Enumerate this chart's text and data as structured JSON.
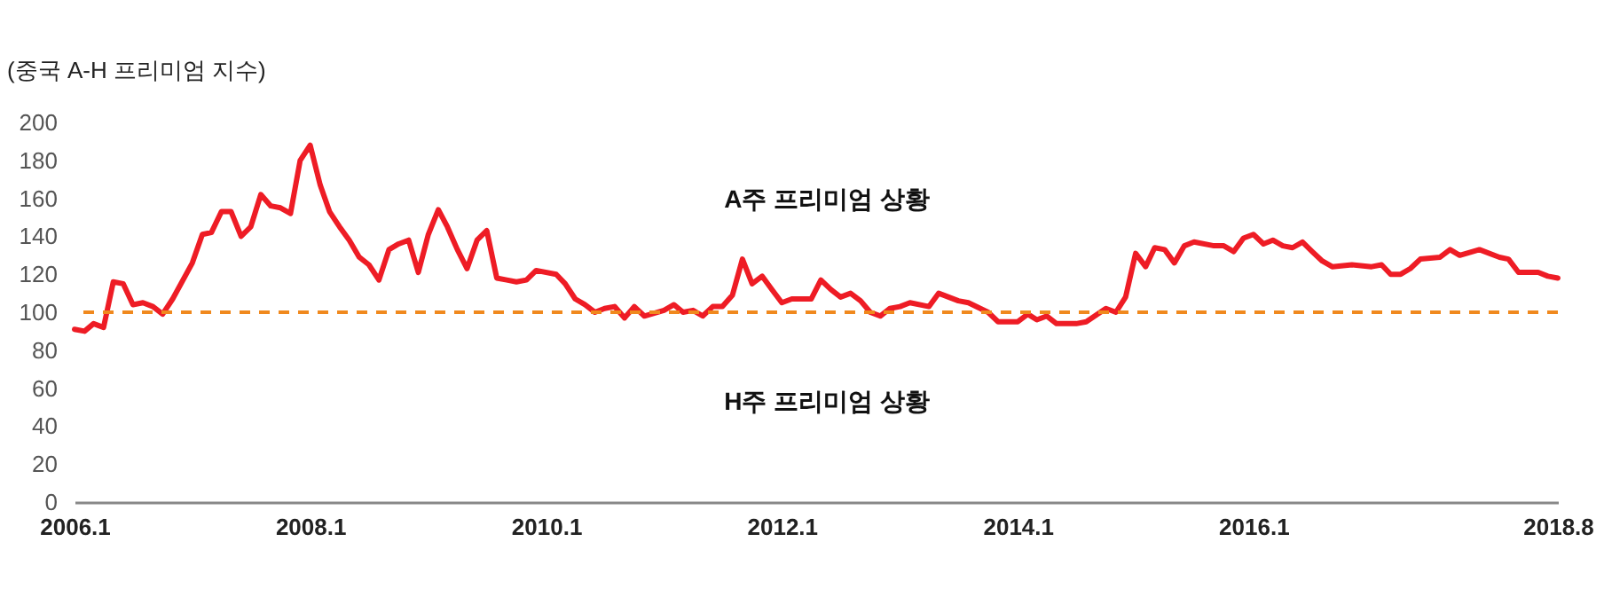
{
  "chart_data": {
    "type": "line",
    "title": "(중국 A-H 프리미엄 지수)",
    "x": [
      "2006-01",
      "2006-02",
      "2006-03",
      "2006-04",
      "2006-05",
      "2006-06",
      "2006-07",
      "2006-08",
      "2006-09",
      "2006-10",
      "2006-11",
      "2007-01",
      "2007-02",
      "2007-03",
      "2007-04",
      "2007-05",
      "2007-06",
      "2007-07",
      "2007-08",
      "2007-09",
      "2007-10",
      "2007-11",
      "2007-12",
      "2008-01",
      "2008-02",
      "2008-03",
      "2008-04",
      "2008-05",
      "2008-06",
      "2008-07",
      "2008-08",
      "2008-09",
      "2008-10",
      "2008-11",
      "2008-12",
      "2009-01",
      "2009-02",
      "2009-03",
      "2009-04",
      "2009-05",
      "2009-06",
      "2009-07",
      "2009-08",
      "2009-09",
      "2009-10",
      "2009-11",
      "2009-12",
      "2010-02",
      "2010-03",
      "2010-04",
      "2010-05",
      "2010-06",
      "2010-07",
      "2010-08",
      "2010-09",
      "2010-10",
      "2010-11",
      "2011-01",
      "2011-02",
      "2011-03",
      "2011-04",
      "2011-05",
      "2011-06",
      "2011-07",
      "2011-08",
      "2011-09",
      "2011-10",
      "2011-11",
      "2011-12",
      "2012-01",
      "2012-02",
      "2012-04",
      "2012-05",
      "2012-06",
      "2012-07",
      "2012-08",
      "2012-09",
      "2012-10",
      "2012-11",
      "2012-12",
      "2013-01",
      "2013-02",
      "2013-04",
      "2013-05",
      "2013-07",
      "2013-08",
      "2013-10",
      "2013-11",
      "2014-01",
      "2014-02",
      "2014-03",
      "2014-04",
      "2014-05",
      "2014-07",
      "2014-08",
      "2014-10",
      "2014-11",
      "2014-12",
      "2015-01",
      "2015-02",
      "2015-03",
      "2015-04",
      "2015-05",
      "2015-06",
      "2015-07",
      "2015-09",
      "2015-10",
      "2015-11",
      "2015-12",
      "2016-01",
      "2016-02",
      "2016-03",
      "2016-04",
      "2016-05",
      "2016-06",
      "2016-07",
      "2016-08",
      "2016-09",
      "2016-11",
      "2017-01",
      "2017-02",
      "2017-03",
      "2017-04",
      "2017-05",
      "2017-06",
      "2017-08",
      "2017-09",
      "2017-10",
      "2017-12",
      "2018-02",
      "2018-03",
      "2018-04",
      "2018-06",
      "2018-07",
      "2018-08"
    ],
    "series": [
      {
        "color": "#ee1c25",
        "values": [
          91,
          90,
          94,
          92,
          116,
          115,
          104,
          105,
          103,
          99,
          107,
          126,
          141,
          142,
          153,
          153,
          140,
          145,
          162,
          156,
          155,
          152,
          180,
          188,
          167,
          153,
          145,
          138,
          129,
          125,
          117,
          133,
          136,
          138,
          121,
          141,
          154,
          145,
          133,
          123,
          138,
          143,
          118,
          117,
          116,
          117,
          122,
          120,
          115,
          107,
          104,
          100,
          102,
          103,
          97,
          103,
          98,
          101,
          104,
          100,
          101,
          98,
          103,
          103,
          109,
          128,
          115,
          119,
          112,
          105,
          107,
          107,
          117,
          112,
          108,
          110,
          106,
          100,
          98,
          102,
          103,
          105,
          103,
          110,
          106,
          105,
          100,
          95,
          95,
          99,
          96,
          98,
          94,
          94,
          95,
          102,
          100,
          108,
          131,
          124,
          134,
          133,
          126,
          135,
          137,
          135,
          135,
          132,
          139,
          141,
          136,
          138,
          135,
          134,
          137,
          132,
          127,
          124,
          125,
          124,
          125,
          120,
          120,
          123,
          128,
          129,
          133,
          130,
          133,
          129,
          128,
          121,
          121,
          119,
          118
        ]
      }
    ],
    "xlim": [
      "2006-01",
      "2018-08"
    ],
    "xticks": [
      {
        "value": "2006-01",
        "label": "2006.1"
      },
      {
        "value": "2008-01",
        "label": "2008.1"
      },
      {
        "value": "2010-01",
        "label": "2010.1"
      },
      {
        "value": "2012-01",
        "label": "2012.1"
      },
      {
        "value": "2014-01",
        "label": "2014.1"
      },
      {
        "value": "2016-01",
        "label": "2016.1"
      },
      {
        "value": "2018-08",
        "label": "2018.8"
      }
    ],
    "ylim": [
      0,
      200
    ],
    "yticks": [
      0,
      20,
      40,
      60,
      80,
      100,
      120,
      140,
      160,
      180,
      200
    ],
    "ref_lines": [
      {
        "axis": "y",
        "value": 100,
        "color": "#f0891e",
        "line_style": "dashed"
      }
    ],
    "annotations": [
      "A주 프리미엄 상황",
      "H주 프리미엄 상황"
    ],
    "grid": false,
    "marker": "none",
    "line_style": "solid"
  }
}
